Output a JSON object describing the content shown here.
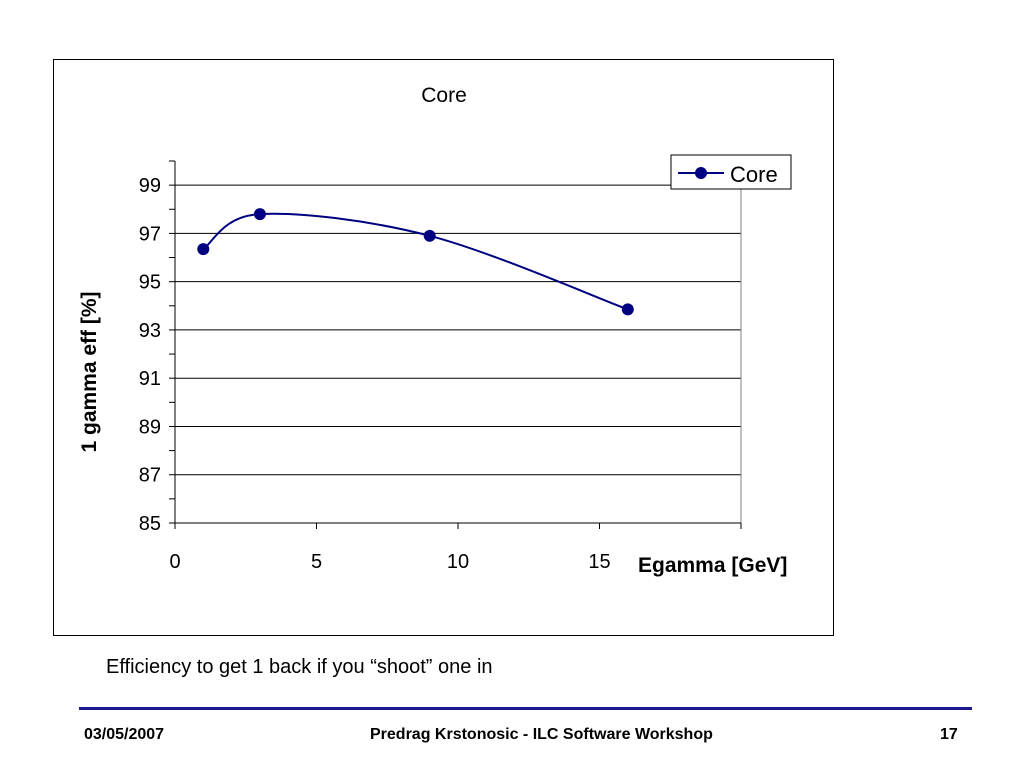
{
  "chart_data": {
    "type": "line",
    "title": "Core",
    "xlabel": "Egamma [GeV]",
    "ylabel": "1 gamma eff [%]",
    "xlim": [
      0,
      20
    ],
    "ylim": [
      85,
      100
    ],
    "x_ticks": [
      0,
      5,
      10,
      15
    ],
    "y_ticks": [
      85,
      87,
      89,
      91,
      93,
      95,
      97,
      99
    ],
    "grid": true,
    "smooth": true,
    "legend_position": "top-right",
    "series": [
      {
        "name": "Core",
        "color": "#000080",
        "x": [
          1,
          3,
          9,
          16
        ],
        "y": [
          96.35,
          97.8,
          96.9,
          93.85
        ]
      }
    ]
  },
  "caption": "Efficiency to get 1 back if you “shoot” one in",
  "footer": {
    "date": "03/05/2007",
    "center": "Predrag Krstonosic - ILC Software Workshop",
    "page": "17",
    "rule_color": "#1a1a8c"
  }
}
